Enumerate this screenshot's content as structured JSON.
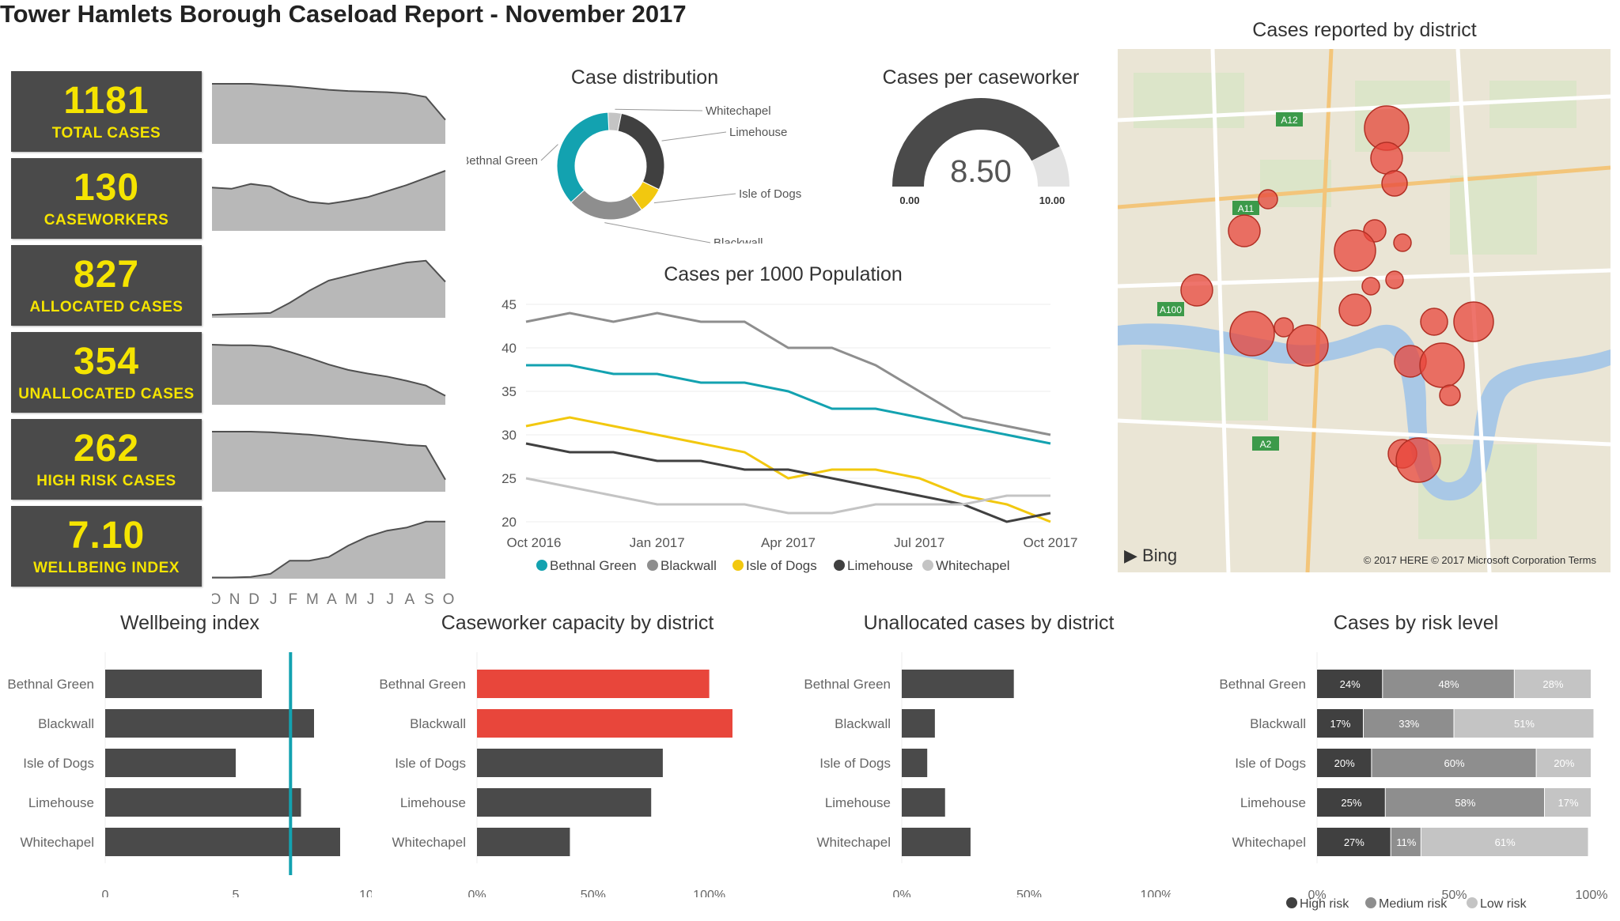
{
  "title": "Tower Hamlets Borough Caseload Report - November 2017",
  "kpis": [
    {
      "value": "1181",
      "label": "TOTAL CASES"
    },
    {
      "value": "130",
      "label": "CASEWORKERS"
    },
    {
      "value": "827",
      "label": "ALLOCATED CASES"
    },
    {
      "value": "354",
      "label": "UNALLOCATED CASES"
    },
    {
      "value": "262",
      "label": "HIGH RISK CASES"
    },
    {
      "value": "7.10",
      "label": "WELLBEING INDEX"
    }
  ],
  "sparkline_months": [
    "O",
    "N",
    "D",
    "J",
    "F",
    "M",
    "A",
    "M",
    "J",
    "J",
    "A",
    "S",
    "O"
  ],
  "colors": {
    "kpi_bg": "#4a4a4a",
    "kpi_text": "#f5e400",
    "teal": "#13a2b0",
    "dark": "#404040",
    "grey": "#8e8e8e",
    "yellow": "#f2c80f",
    "light": "#c4c4c4",
    "red": "#e8463b",
    "area": "#b8b8b8"
  },
  "gauge": {
    "title": "Cases per caseworker",
    "value": 8.5,
    "value_label": "8.50",
    "min_label": "0.00",
    "max_label": "10.00"
  },
  "map": {
    "title": "Cases reported by district",
    "bing": "Bing",
    "copyright": "© 2017 HERE © 2017 Microsoft Corporation Terms"
  },
  "chart_data": [
    {
      "id": "kpi-sparklines",
      "type": "area",
      "x": [
        "O",
        "N",
        "D",
        "J",
        "F",
        "M",
        "A",
        "M",
        "J",
        "J",
        "A",
        "S",
        "O"
      ],
      "series": [
        {
          "name": "Total cases",
          "values": [
            100,
            100,
            100,
            98,
            96,
            93,
            90,
            88,
            87,
            86,
            84,
            78,
            40
          ]
        },
        {
          "name": "Caseworkers",
          "values": [
            72,
            70,
            78,
            74,
            58,
            48,
            45,
            50,
            56,
            66,
            76,
            88,
            100
          ]
        },
        {
          "name": "Allocated cases",
          "values": [
            5,
            6,
            7,
            8,
            25,
            45,
            62,
            70,
            78,
            85,
            92,
            95,
            60
          ]
        },
        {
          "name": "Unallocated cases",
          "values": [
            100,
            99,
            99,
            97,
            88,
            78,
            67,
            58,
            52,
            47,
            40,
            32,
            15
          ]
        },
        {
          "name": "High risk cases",
          "values": [
            100,
            100,
            100,
            99,
            97,
            95,
            92,
            88,
            85,
            82,
            78,
            76,
            20
          ]
        },
        {
          "name": "Wellbeing index",
          "values": [
            2,
            2,
            3,
            8,
            30,
            30,
            36,
            55,
            70,
            80,
            85,
            95,
            95
          ]
        }
      ]
    },
    {
      "id": "case-distribution",
      "type": "pie",
      "title": "Case distribution",
      "categories": [
        "Bethnal Green",
        "Blackwall",
        "Isle of Dogs",
        "Limehouse",
        "Whitechapel"
      ],
      "values": [
        36,
        23,
        8,
        29,
        4
      ],
      "colors": [
        "#13a2b0",
        "#8e8e8e",
        "#f2c80f",
        "#404040",
        "#c4c4c4"
      ]
    },
    {
      "id": "cases-per-1000",
      "type": "line",
      "title": "Cases per 1000 Population",
      "x": [
        "Oct 2016",
        "Nov 2016",
        "Dec 2016",
        "Jan 2017",
        "Feb 2017",
        "Mar 2017",
        "Apr 2017",
        "May 2017",
        "Jun 2017",
        "Jul 2017",
        "Aug 2017",
        "Sep 2017",
        "Oct 2017"
      ],
      "x_ticks": [
        "Oct 2016",
        "Jan 2017",
        "Apr 2017",
        "Jul 2017",
        "Oct 2017"
      ],
      "ylim": [
        20,
        45
      ],
      "y_ticks": [
        20,
        25,
        30,
        35,
        40,
        45
      ],
      "series": [
        {
          "name": "Bethnal Green",
          "color": "#13a2b0",
          "values": [
            38,
            38,
            37,
            37,
            36,
            36,
            35,
            33,
            33,
            32,
            31,
            30,
            29
          ]
        },
        {
          "name": "Blackwall",
          "color": "#8e8e8e",
          "values": [
            43,
            44,
            43,
            44,
            43,
            43,
            40,
            40,
            38,
            35,
            32,
            31,
            30
          ]
        },
        {
          "name": "Isle of Dogs",
          "color": "#f2c80f",
          "values": [
            31,
            32,
            31,
            30,
            29,
            28,
            25,
            26,
            26,
            25,
            23,
            22,
            20
          ]
        },
        {
          "name": "Limehouse",
          "color": "#404040",
          "values": [
            29,
            28,
            28,
            27,
            27,
            26,
            26,
            25,
            24,
            23,
            22,
            20,
            21
          ]
        },
        {
          "name": "Whitechapel",
          "color": "#c4c4c4",
          "values": [
            25,
            24,
            23,
            22,
            22,
            22,
            21,
            21,
            22,
            22,
            22,
            23,
            23
          ]
        }
      ]
    },
    {
      "id": "wellbeing-index",
      "type": "bar",
      "title": "Wellbeing index",
      "categories": [
        "Bethnal Green",
        "Blackwall",
        "Isle of Dogs",
        "Limehouse",
        "Whitechapel"
      ],
      "values": [
        6.0,
        8.0,
        5.0,
        7.5,
        9.0
      ],
      "reference_line": 7.1,
      "xlim": [
        0,
        10
      ],
      "x_ticks": [
        "0",
        "5",
        "10"
      ]
    },
    {
      "id": "caseworker-capacity",
      "type": "bar",
      "title": "Caseworker capacity by district",
      "categories": [
        "Bethnal Green",
        "Blackwall",
        "Isle of Dogs",
        "Limehouse",
        "Whitechapel"
      ],
      "values": [
        100,
        110,
        80,
        75,
        40
      ],
      "colors": [
        "#e8463b",
        "#e8463b",
        "#4a4a4a",
        "#4a4a4a",
        "#4a4a4a"
      ],
      "xlim": [
        0,
        110
      ],
      "x_ticks": [
        "0%",
        "50%",
        "100%"
      ]
    },
    {
      "id": "unallocated-by-district",
      "type": "bar",
      "title": "Unallocated cases by district",
      "categories": [
        "Bethnal Green",
        "Blackwall",
        "Isle of Dogs",
        "Limehouse",
        "Whitechapel"
      ],
      "values": [
        44,
        13,
        10,
        17,
        27
      ],
      "xlim": [
        0,
        100
      ],
      "x_ticks": [
        "0%",
        "50%",
        "100%"
      ]
    },
    {
      "id": "risk-level",
      "type": "bar",
      "title": "Cases by risk level",
      "stacked": true,
      "categories": [
        "Bethnal Green",
        "Blackwall",
        "Isle of Dogs",
        "Limehouse",
        "Whitechapel"
      ],
      "series": [
        {
          "name": "High risk",
          "color": "#404040",
          "values": [
            24,
            17,
            20,
            25,
            27
          ],
          "labels": [
            "24%",
            "17%",
            "20%",
            "25%",
            "27%"
          ]
        },
        {
          "name": "Medium risk",
          "color": "#8e8e8e",
          "values": [
            48,
            33,
            60,
            58,
            11
          ],
          "labels": [
            "48%",
            "33%",
            "60%",
            "58%",
            "11%"
          ]
        },
        {
          "name": "Low risk",
          "color": "#c4c4c4",
          "values": [
            28,
            51,
            20,
            17,
            61
          ],
          "labels": [
            "28%",
            "51%",
            "20%",
            "17%",
            "61%"
          ]
        }
      ],
      "xlim": [
        0,
        100
      ],
      "x_ticks": [
        "0%",
        "50%",
        "100%"
      ]
    }
  ]
}
